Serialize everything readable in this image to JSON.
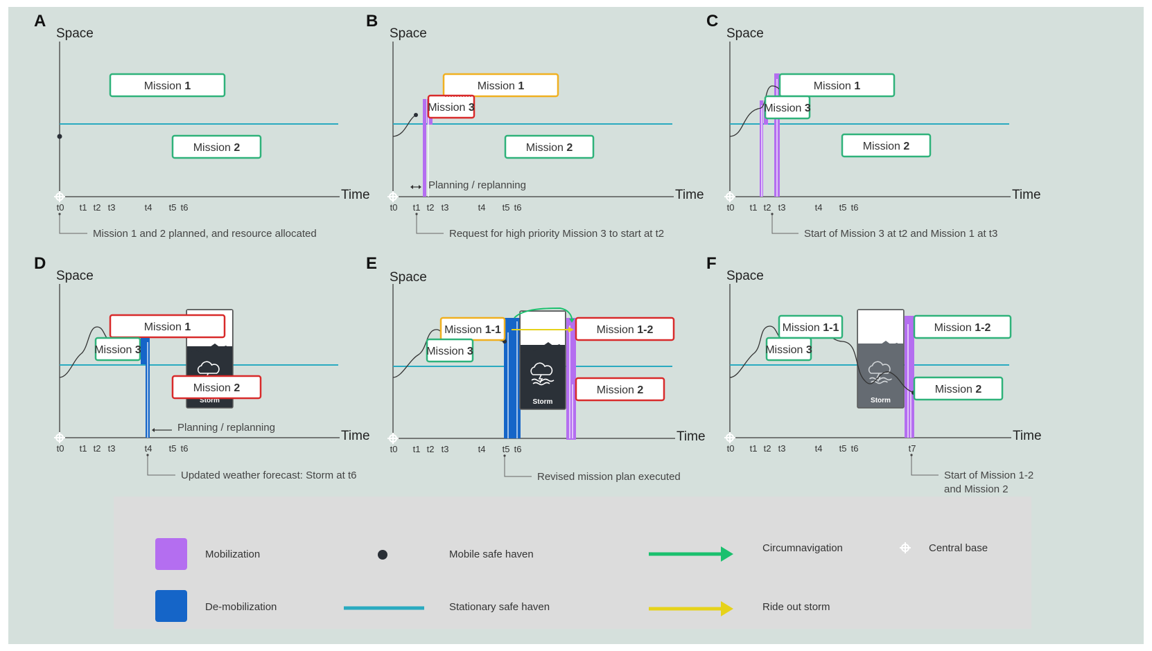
{
  "colors": {
    "background": "#d5e0dc",
    "legend_bg": "#dcdcdc",
    "axis": "#555555",
    "safe_haven_line": "#2aaac0",
    "mobilization": "#b46ef0",
    "demobilization": "#1565c8",
    "box_green": "#2fb27a",
    "box_yellow": "#f0b020",
    "box_red": "#d82a2a",
    "circumnavigation": "#1bc06e",
    "ride_out": "#e6d21a",
    "storm_dark": "#2b3138",
    "storm_grey": "#656b72"
  },
  "axes": {
    "space": "Space",
    "time": "Time"
  },
  "storm_label": "Storm",
  "panels": [
    {
      "letter": "A",
      "missions": [
        {
          "prefix": "Mission ",
          "bold": "1",
          "state": "green"
        },
        {
          "prefix": "Mission ",
          "bold": "2",
          "state": "green"
        }
      ],
      "ticks": [
        "t0",
        "t1",
        "t2",
        "t3",
        "t4",
        "t5",
        "t6"
      ],
      "caption": [
        "Mission 1 and 2 planned, and resource allocated"
      ]
    },
    {
      "letter": "B",
      "missions": [
        {
          "prefix": "Mission ",
          "bold": "1",
          "state": "yellow"
        },
        {
          "prefix": "Mission ",
          "bold": "3",
          "state": "red"
        },
        {
          "prefix": "Mission ",
          "bold": "2",
          "state": "green"
        }
      ],
      "ticks": [
        "t0",
        "t1",
        "t2",
        "t3",
        "t4",
        "t5",
        "t6"
      ],
      "annotation": "Planning / replanning",
      "caption": [
        "Request for high priority Mission 3 to start at t2"
      ]
    },
    {
      "letter": "C",
      "missions": [
        {
          "prefix": "Mission ",
          "bold": "1",
          "state": "green"
        },
        {
          "prefix": "Mission ",
          "bold": "3",
          "state": "green"
        },
        {
          "prefix": "Mission ",
          "bold": "2",
          "state": "green"
        }
      ],
      "ticks": [
        "t0",
        "t1",
        "t2",
        "t3",
        "t4",
        "t5",
        "t6"
      ],
      "caption": [
        "Start of Mission 3 at t2 and Mission 1 at t3"
      ]
    },
    {
      "letter": "D",
      "missions": [
        {
          "prefix": "Mission ",
          "bold": "1",
          "state": "red"
        },
        {
          "prefix": "Mission ",
          "bold": "3",
          "state": "green"
        },
        {
          "prefix": "Mission ",
          "bold": "2",
          "state": "red"
        }
      ],
      "ticks": [
        "t0",
        "t1",
        "t2",
        "t3",
        "t4",
        "t5",
        "t6"
      ],
      "annotation": "Planning / replanning",
      "caption": [
        "Updated weather forecast: Storm at t6"
      ]
    },
    {
      "letter": "E",
      "missions": [
        {
          "prefix": "Mission ",
          "bold": "1-1",
          "state": "yellow"
        },
        {
          "prefix": "Mission ",
          "bold": "3",
          "state": "green"
        },
        {
          "prefix": "Mission ",
          "bold": "1-2",
          "state": "red"
        },
        {
          "prefix": "Mission ",
          "bold": "2",
          "state": "red"
        }
      ],
      "ticks": [
        "t0",
        "t1",
        "t2",
        "t3",
        "t4",
        "t5",
        "t6"
      ],
      "caption": [
        "Revised mission plan executed"
      ]
    },
    {
      "letter": "F",
      "missions": [
        {
          "prefix": "Mission ",
          "bold": "1-1",
          "state": "green"
        },
        {
          "prefix": "Mission ",
          "bold": "3",
          "state": "green"
        },
        {
          "prefix": "Mission ",
          "bold": "1-2",
          "state": "green"
        },
        {
          "prefix": "Mission ",
          "bold": "2",
          "state": "green"
        }
      ],
      "ticks": [
        "t0",
        "t1",
        "t2",
        "t3",
        "t4",
        "t5",
        "t6",
        "t7"
      ],
      "caption": [
        "Start of Mission 1-2",
        "and Mission 2"
      ]
    }
  ],
  "legend": {
    "mobilization": "Mobilization",
    "demobilization": "De-mobilization",
    "mobile_safe_haven": "Mobile safe haven",
    "stationary_safe_haven": "Stationary safe haven",
    "circumnavigation": "Circumnavigation",
    "ride_out_storm": "Ride out storm",
    "central_base": "Central base"
  }
}
